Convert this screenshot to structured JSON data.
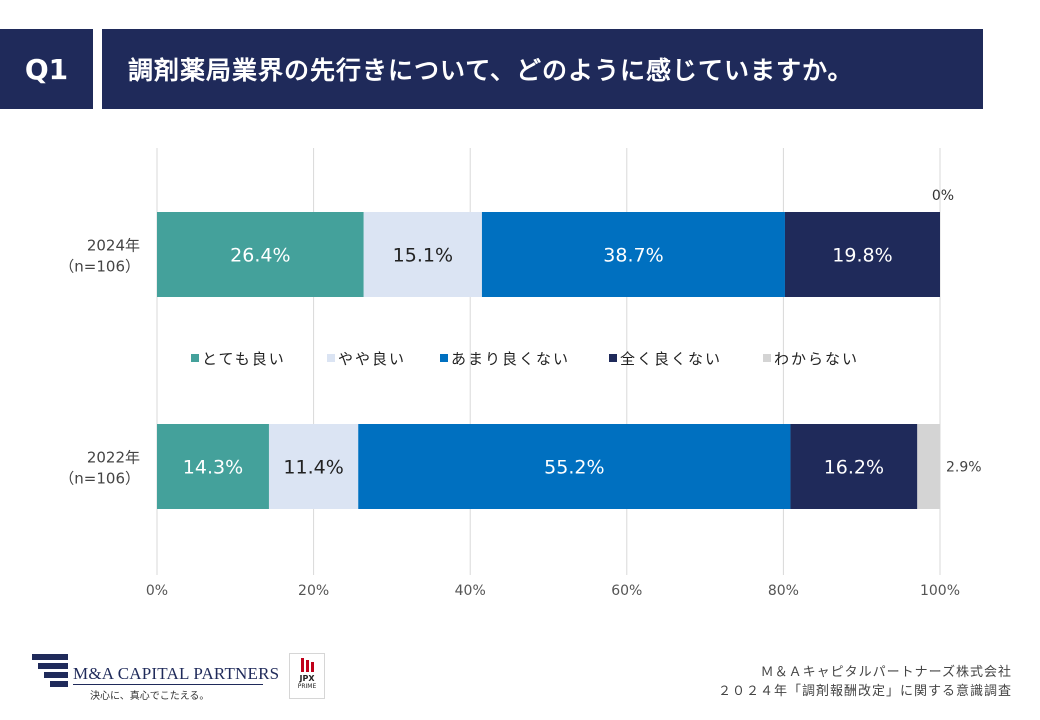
{
  "header": {
    "q_label": "Q1",
    "title": "調剤薬局業界の先行きについて、どのように感じていますか。"
  },
  "chart_data": {
    "type": "bar",
    "orientation": "horizontal",
    "stacked": true,
    "normalized": true,
    "categories": [
      "2024年\n（n=106）",
      "2022年\n（n=106）"
    ],
    "series": [
      {
        "name": "とても良い",
        "values": [
          26.4,
          14.3
        ],
        "color": "#44a19b",
        "label_color": "#ffffff"
      },
      {
        "name": "やや良い",
        "values": [
          15.1,
          11.4
        ],
        "color": "#dbe4f3",
        "label_color": "#222222"
      },
      {
        "name": "あまり良くない",
        "values": [
          38.7,
          55.2
        ],
        "color": "#0070c0",
        "label_color": "#ffffff"
      },
      {
        "name": "全く良くない",
        "values": [
          19.8,
          16.2
        ],
        "color": "#1f2a5a",
        "label_color": "#ffffff"
      },
      {
        "name": "わからない",
        "values": [
          0,
          2.9
        ],
        "color": "#d4d4d4",
        "label_color": "#444444"
      }
    ],
    "xlim": [
      0,
      100
    ],
    "xticks": [
      "0%",
      "20%",
      "40%",
      "60%",
      "80%",
      "100%"
    ],
    "grid": true,
    "legend_position": "middle",
    "value_suffix": "%"
  },
  "footer": {
    "logo_name": "M&A CAPITAL PARTNERS",
    "logo_tagline": "決心に、真心でこたえる。",
    "jpx_line1": "JPX",
    "jpx_line2": "PRIME",
    "source_line1": "Ｍ＆Ａキャピタルパートナーズ株式会社",
    "source_line2": "２０２４年「調剤報酬改定」に関する意識調査"
  }
}
